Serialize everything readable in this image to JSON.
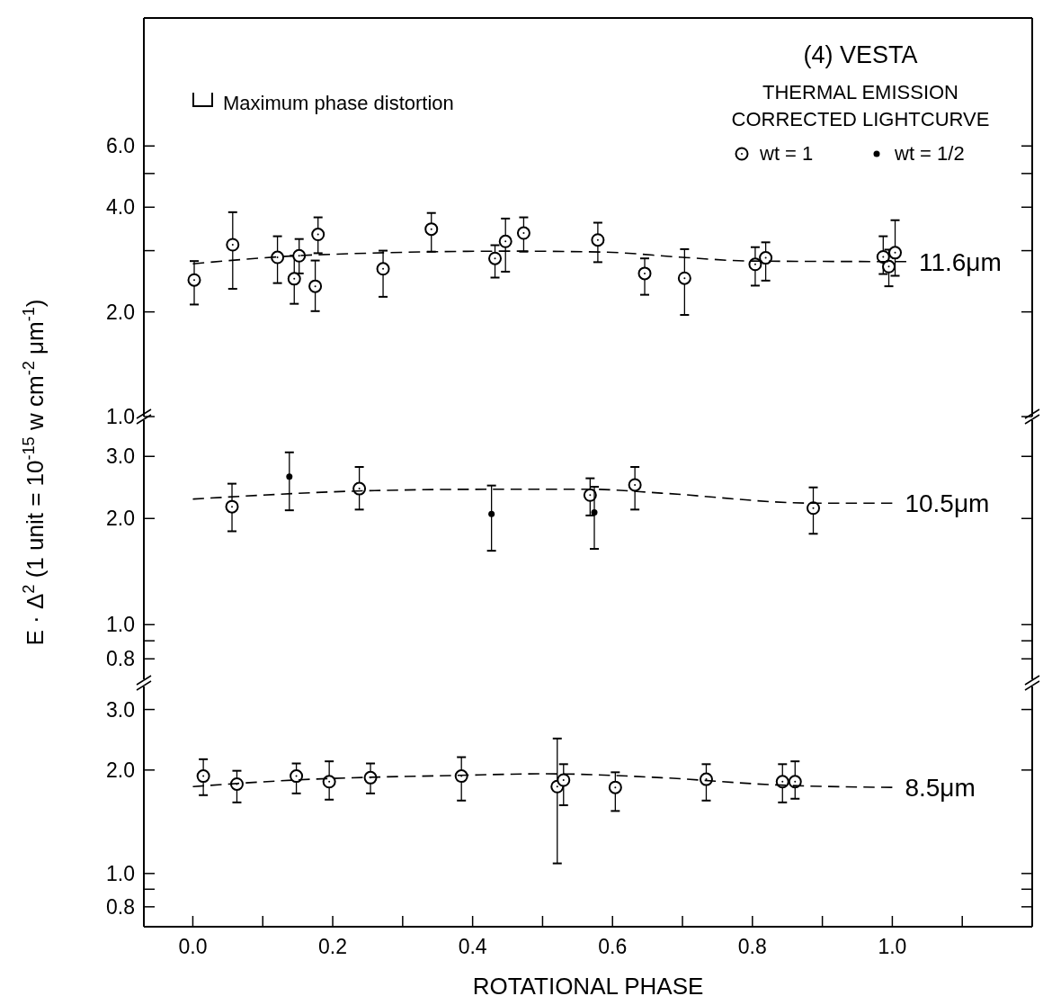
{
  "chart_data": [
    {
      "type": "scatter",
      "title": "(4) VESTA",
      "annotations": [
        "THERMAL EMISSION",
        "CORRECTED LIGHTCURVE",
        "Maximum phase distortion"
      ],
      "log": true,
      "legend": "top right",
      "tick_labels": "y",
      "grid": false,
      "xlim": [
        -0.07,
        1.2
      ],
      "ylim": [
        1.0,
        14
      ],
      "yticks": [
        {
          "value": 1,
          "label": "1.0"
        },
        {
          "value": 2,
          "label": "2.0"
        },
        {
          "value": 3,
          "label": null
        },
        {
          "value": 4,
          "label": "4.0"
        },
        {
          "value": 5,
          "label": null
        },
        {
          "value": 6,
          "label": "6.0"
        }
      ],
      "series": [
        {
          "name": "wt = 1",
          "color": "#000000",
          "marker": "circle",
          "x": [
            0.002,
            0.057,
            0.121,
            0.145,
            0.152,
            0.175,
            0.179,
            0.272,
            0.341,
            0.432,
            0.447,
            0.473,
            0.579,
            0.646,
            0.703,
            0.804,
            0.819,
            0.987,
            0.995,
            1.004
          ],
          "values": [
            2.47,
            3.12,
            2.87,
            2.49,
            2.9,
            2.37,
            3.34,
            2.66,
            3.46,
            2.85,
            3.19,
            3.37,
            3.22,
            2.58,
            2.5,
            2.74,
            2.86,
            2.88,
            2.7,
            2.96
          ],
          "errors": [
            [
              2.1,
              2.8
            ],
            [
              2.33,
              3.87
            ],
            [
              2.42,
              3.3
            ],
            [
              2.11,
              2.9
            ],
            [
              2.58,
              3.24
            ],
            [
              2.01,
              2.81
            ],
            [
              2.95,
              3.74
            ],
            [
              2.21,
              3.0
            ],
            [
              2.98,
              3.85
            ],
            [
              2.51,
              3.11
            ],
            [
              2.61,
              3.71
            ],
            [
              2.98,
              3.74
            ],
            [
              2.78,
              3.61
            ],
            [
              2.24,
              2.85
            ],
            [
              1.96,
              3.03
            ],
            [
              2.38,
              3.07
            ],
            [
              2.46,
              3.17
            ],
            [
              2.57,
              3.3
            ],
            [
              2.37,
              3.02
            ],
            [
              2.54,
              3.67
            ]
          ]
        },
        {
          "name": "11.6μm",
          "type": "line",
          "color": "#000000",
          "marker": "none",
          "line_style": "dashed",
          "x": [
            0,
            0.18,
            0.46,
            0.59,
            0.7,
            0.8,
            1.02
          ],
          "values": [
            2.75,
            2.92,
            2.99,
            2.97,
            2.87,
            2.8,
            2.79
          ]
        }
      ]
    },
    {
      "type": "scatter",
      "legend": "top right",
      "ylabel": "E · Δ$^{2}$  (1 unit = 10$^{-15}$ w cm$^{-2}$ μm$^{-1}$)",
      "log": true,
      "tick_labels": "y",
      "grid": false,
      "xlim": [
        -0.07,
        1.2
      ],
      "ylim": [
        0.7,
        3.8
      ],
      "yticks": [
        {
          "value": 0.8,
          "label": "0.8"
        },
        {
          "value": 0.9,
          "label": null
        },
        {
          "value": 1,
          "label": "1.0"
        },
        {
          "value": 2,
          "label": "2.0"
        },
        {
          "value": 3,
          "label": "3.0"
        }
      ],
      "series": [
        {
          "color": "#000000",
          "marker": "circle",
          "x": [
            0.056,
            0.238,
            0.568,
            0.632,
            0.887
          ],
          "values": [
            2.16,
            2.43,
            2.33,
            2.49,
            2.14
          ],
          "errors": [
            [
              1.84,
              2.51
            ],
            [
              2.12,
              2.8
            ],
            [
              2.04,
              2.6
            ],
            [
              2.12,
              2.8
            ],
            [
              1.81,
              2.45
            ]
          ]
        },
        {
          "name": "wt = 1/2",
          "color": "#000000",
          "marker": "point",
          "x": [
            0.138,
            0.427,
            0.574
          ],
          "values": [
            2.63,
            2.06,
            2.08
          ],
          "errors": [
            [
              2.11,
              3.08
            ],
            [
              1.62,
              2.48
            ],
            [
              1.64,
              2.46
            ]
          ]
        },
        {
          "name": "10.5μm",
          "type": "line",
          "color": "#000000",
          "marker": "none",
          "line_style": "dashed",
          "x": [
            0,
            0.26,
            0.42,
            0.57,
            0.67,
            0.89,
            1.0
          ],
          "values": [
            2.27,
            2.4,
            2.42,
            2.42,
            2.36,
            2.21,
            2.21
          ]
        }
      ]
    },
    {
      "type": "scatter",
      "xlabel": "ROTATIONAL PHASE",
      "log": true,
      "grid": false,
      "xlim": [
        -0.07,
        1.2
      ],
      "ylim": [
        0.7,
        3.5
      ],
      "xticks": [
        {
          "value": 0,
          "label": "0.0"
        },
        {
          "value": 0.1,
          "label": null
        },
        {
          "value": 0.2,
          "label": "0.2"
        },
        {
          "value": 0.3,
          "label": null
        },
        {
          "value": 0.4,
          "label": "0.4"
        },
        {
          "value": 0.5,
          "label": null
        },
        {
          "value": 0.6,
          "label": "0.6"
        },
        {
          "value": 0.7,
          "label": null
        },
        {
          "value": 0.8,
          "label": "0.8"
        },
        {
          "value": 0.9,
          "label": null
        },
        {
          "value": 1,
          "label": "1.0"
        },
        {
          "value": 1.1,
          "label": null
        }
      ],
      "yticks": [
        {
          "value": 0.8,
          "label": "0.8"
        },
        {
          "value": 0.9,
          "label": null
        },
        {
          "value": 1,
          "label": "1.0"
        },
        {
          "value": 2,
          "label": "2.0"
        },
        {
          "value": 3,
          "label": "3.0"
        }
      ],
      "series": [
        {
          "color": "#000000",
          "marker": "circle",
          "x": [
            0.015,
            0.063,
            0.148,
            0.195,
            0.254,
            0.384,
            0.521,
            0.53,
            0.604,
            0.734,
            0.843,
            0.861
          ],
          "values": [
            1.92,
            1.82,
            1.92,
            1.85,
            1.9,
            1.92,
            1.79,
            1.87,
            1.78,
            1.88,
            1.85,
            1.85
          ],
          "errors": [
            [
              1.69,
              2.15
            ],
            [
              1.61,
              1.99
            ],
            [
              1.71,
              2.09
            ],
            [
              1.64,
              2.12
            ],
            [
              1.71,
              2.09
            ],
            [
              1.63,
              2.18
            ],
            [
              1.07,
              2.47
            ],
            [
              1.58,
              2.08
            ],
            [
              1.52,
              1.97
            ],
            [
              1.63,
              2.08
            ],
            [
              1.61,
              2.08
            ],
            [
              1.65,
              2.12
            ]
          ]
        },
        {
          "name": "8.5μm",
          "type": "line",
          "color": "#000000",
          "marker": "none",
          "line_style": "dashed",
          "x": [
            0,
            0.145,
            0.38,
            0.505,
            0.67,
            0.834,
            1.0
          ],
          "values": [
            1.79,
            1.87,
            1.93,
            1.95,
            1.9,
            1.81,
            1.78
          ]
        }
      ]
    }
  ]
}
